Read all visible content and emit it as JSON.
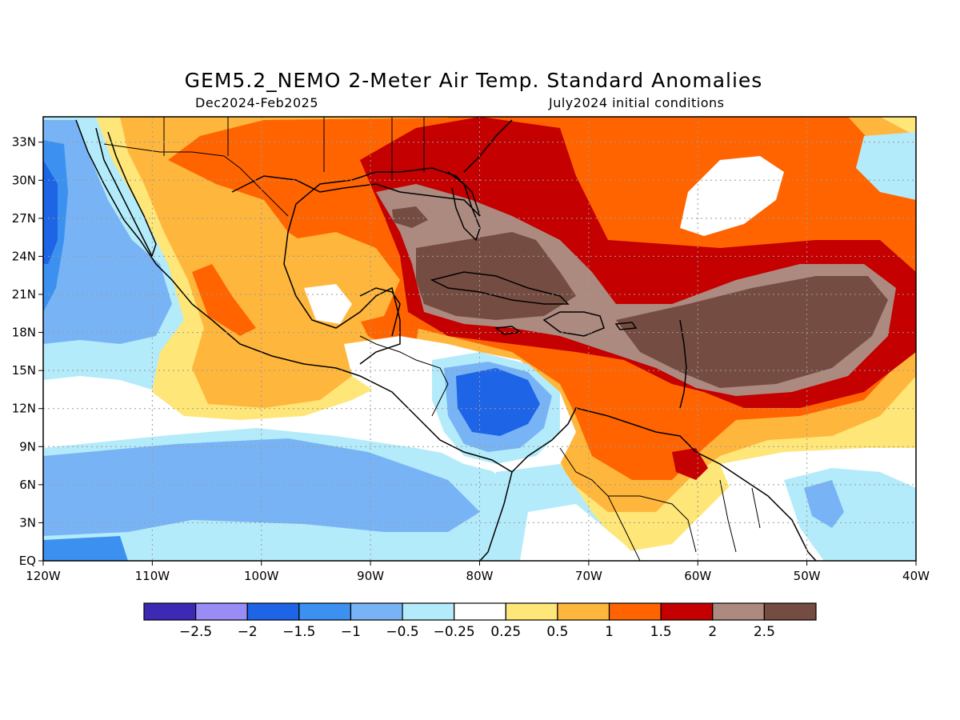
{
  "title": "GEM5.2_NEMO 2-Meter Air Temp. Standard Anomalies",
  "subtitle_left": "Dec2024-Feb2025",
  "subtitle_right": "July2024 initial conditions",
  "map": {
    "lon_range": [
      -120,
      -40
    ],
    "lat_range": [
      0,
      35
    ],
    "lon_ticks": [
      {
        "value": -120,
        "label": "120W"
      },
      {
        "value": -110,
        "label": "110W"
      },
      {
        "value": -100,
        "label": "100W"
      },
      {
        "value": -90,
        "label": "90W"
      },
      {
        "value": -80,
        "label": "80W"
      },
      {
        "value": -70,
        "label": "70W"
      },
      {
        "value": -60,
        "label": "60W"
      },
      {
        "value": -50,
        "label": "50W"
      },
      {
        "value": -40,
        "label": "40W"
      }
    ],
    "lat_ticks": [
      {
        "value": 0,
        "label": "EQ"
      },
      {
        "value": 3,
        "label": "3N"
      },
      {
        "value": 6,
        "label": "6N"
      },
      {
        "value": 9,
        "label": "9N"
      },
      {
        "value": 12,
        "label": "12N"
      },
      {
        "value": 15,
        "label": "15N"
      },
      {
        "value": 18,
        "label": "18N"
      },
      {
        "value": 21,
        "label": "21N"
      },
      {
        "value": 24,
        "label": "24N"
      },
      {
        "value": 27,
        "label": "27N"
      },
      {
        "value": 30,
        "label": "30N"
      },
      {
        "value": 33,
        "label": "33N"
      }
    ],
    "grid": true
  },
  "colorbar": {
    "colors": [
      "#3c2ab4",
      "#9a8cf5",
      "#1e64e6",
      "#3c91f0",
      "#78b4f5",
      "#b4ebfa",
      "#ffffff",
      "#fee678",
      "#ffb63c",
      "#ff6400",
      "#c40000",
      "#ad8a80",
      "#744c42"
    ],
    "labels": [
      "-2.5",
      "-2",
      "-1.5",
      "-1",
      "-0.5",
      "-0.25",
      "0.25",
      "0.5",
      "1",
      "1.5",
      "2",
      "2.5"
    ]
  }
}
